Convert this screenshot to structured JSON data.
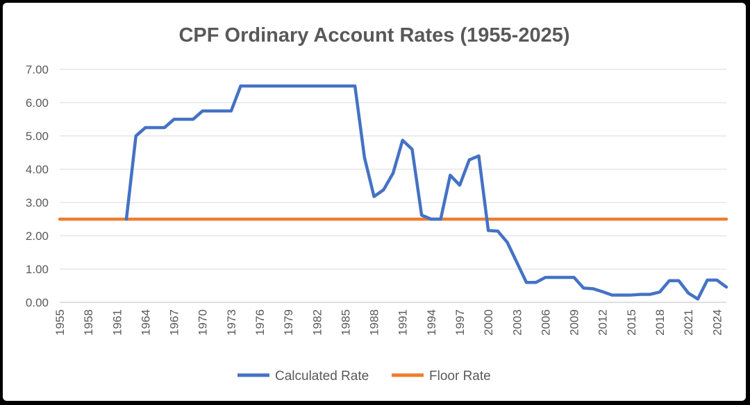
{
  "chart_data": {
    "type": "line",
    "title": "CPF Ordinary Account Rates (1955-2025)",
    "xlabel": "",
    "ylabel": "",
    "ylim": [
      0,
      7
    ],
    "y_ticks": [
      "0.00",
      "1.00",
      "2.00",
      "3.00",
      "4.00",
      "5.00",
      "6.00",
      "7.00"
    ],
    "x_ticks": [
      "1955",
      "1958",
      "1961",
      "1964",
      "1967",
      "1970",
      "1973",
      "1976",
      "1979",
      "1982",
      "1985",
      "1988",
      "1991",
      "1994",
      "1997",
      "2000",
      "2003",
      "2006",
      "2009",
      "2012",
      "2015",
      "2018",
      "2021",
      "2024"
    ],
    "x_range": [
      1955,
      2025
    ],
    "grid": "horizontal",
    "legend": "bottom",
    "series": [
      {
        "name": "Calculated Rate",
        "color": "#4472C4",
        "points": [
          [
            1962,
            2.5
          ],
          [
            1963,
            5.0
          ],
          [
            1964,
            5.25
          ],
          [
            1965,
            5.25
          ],
          [
            1966,
            5.25
          ],
          [
            1967,
            5.5
          ],
          [
            1968,
            5.5
          ],
          [
            1969,
            5.5
          ],
          [
            1970,
            5.75
          ],
          [
            1971,
            5.75
          ],
          [
            1972,
            5.75
          ],
          [
            1973,
            5.75
          ],
          [
            1974,
            6.5
          ],
          [
            1975,
            6.5
          ],
          [
            1976,
            6.5
          ],
          [
            1977,
            6.5
          ],
          [
            1978,
            6.5
          ],
          [
            1979,
            6.5
          ],
          [
            1980,
            6.5
          ],
          [
            1981,
            6.5
          ],
          [
            1982,
            6.5
          ],
          [
            1983,
            6.5
          ],
          [
            1984,
            6.5
          ],
          [
            1985,
            6.5
          ],
          [
            1986,
            6.5
          ],
          [
            1987,
            4.35
          ],
          [
            1988,
            3.18
          ],
          [
            1989,
            3.38
          ],
          [
            1990,
            3.88
          ],
          [
            1991,
            4.87
          ],
          [
            1992,
            4.6
          ],
          [
            1993,
            2.62
          ],
          [
            1994,
            2.5
          ],
          [
            1995,
            2.5
          ],
          [
            1996,
            3.82
          ],
          [
            1997,
            3.52
          ],
          [
            1998,
            4.28
          ],
          [
            1999,
            4.4
          ],
          [
            2000,
            2.16
          ],
          [
            2001,
            2.14
          ],
          [
            2002,
            1.8
          ],
          [
            2003,
            1.2
          ],
          [
            2004,
            0.6
          ],
          [
            2005,
            0.6
          ],
          [
            2006,
            0.75
          ],
          [
            2007,
            0.75
          ],
          [
            2008,
            0.75
          ],
          [
            2009,
            0.75
          ],
          [
            2010,
            0.43
          ],
          [
            2011,
            0.41
          ],
          [
            2012,
            0.32
          ],
          [
            2013,
            0.22
          ],
          [
            2014,
            0.22
          ],
          [
            2015,
            0.22
          ],
          [
            2016,
            0.24
          ],
          [
            2017,
            0.24
          ],
          [
            2018,
            0.31
          ],
          [
            2019,
            0.65
          ],
          [
            2020,
            0.65
          ],
          [
            2021,
            0.28
          ],
          [
            2022,
            0.1
          ],
          [
            2023,
            0.67
          ],
          [
            2024,
            0.67
          ],
          [
            2025,
            0.46
          ]
        ]
      },
      {
        "name": "Floor Rate",
        "color": "#ED7D31",
        "points": [
          [
            1955,
            2.5
          ],
          [
            2025,
            2.5
          ]
        ]
      }
    ]
  }
}
